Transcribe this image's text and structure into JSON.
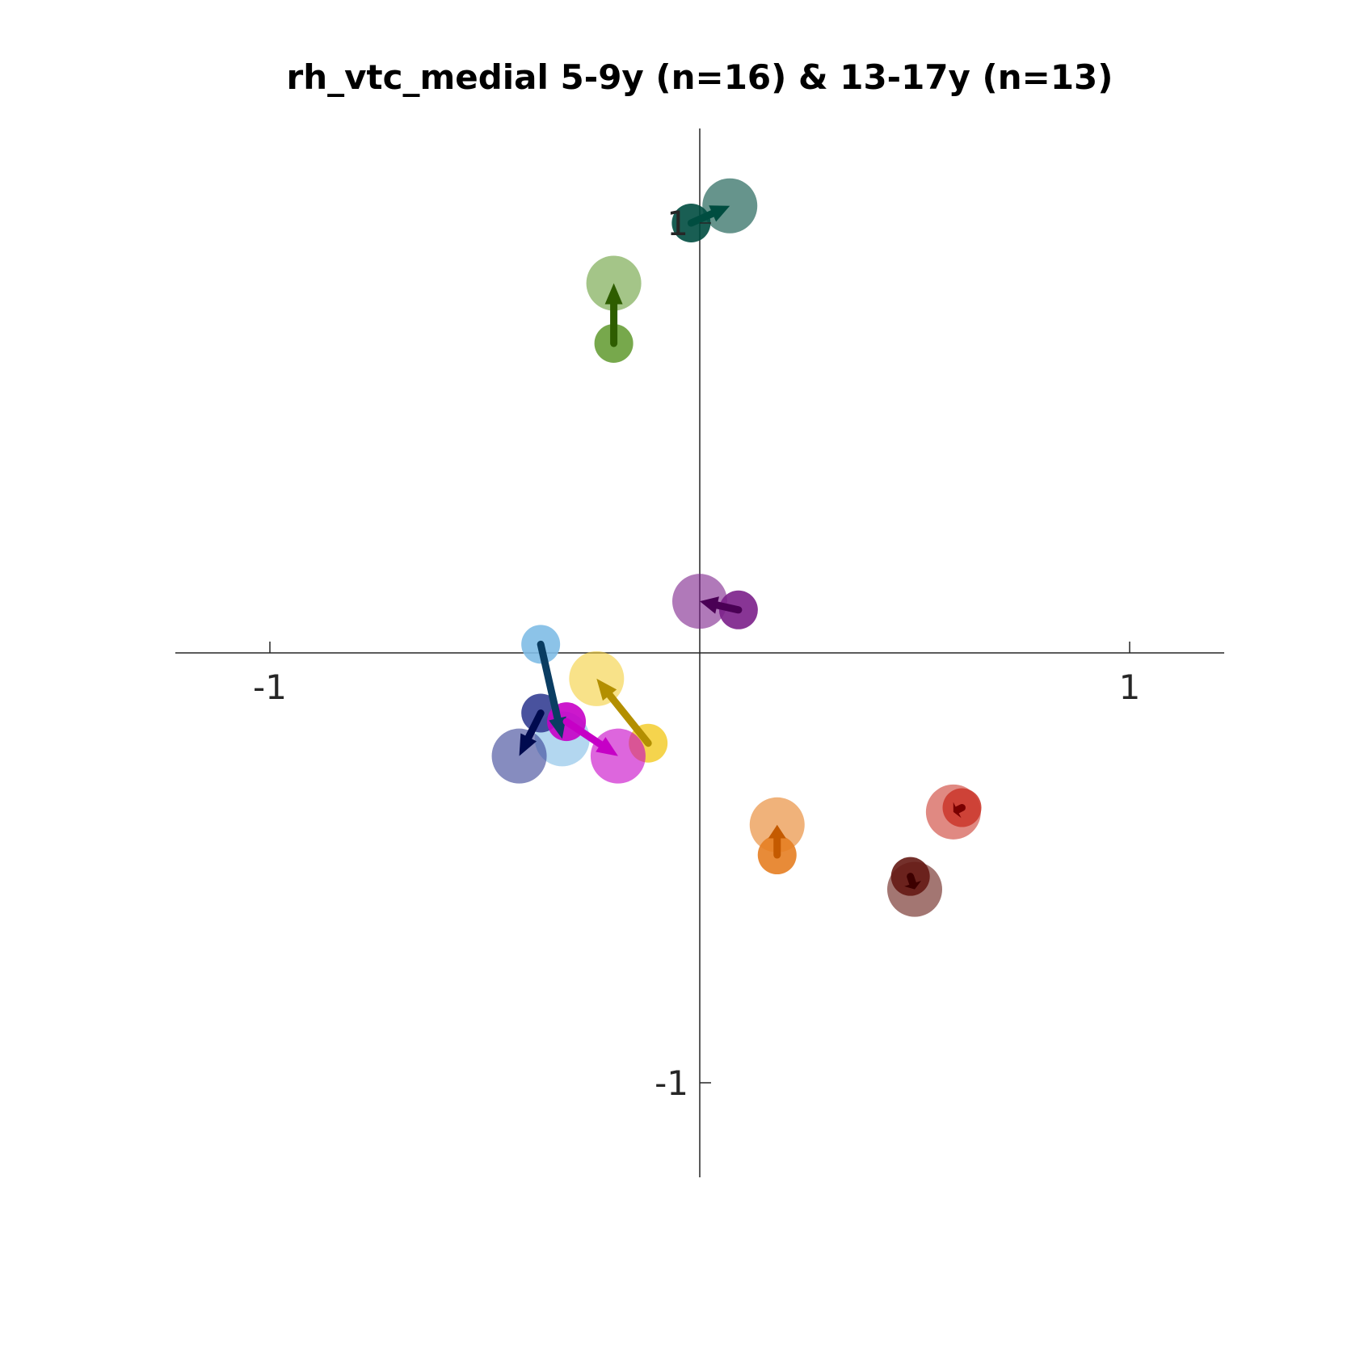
{
  "chart_data": {
    "type": "scatter",
    "title": "rh_vtc_medial 5-9y (n=16) & 13-17y (n=13)",
    "xlabel": "",
    "ylabel": "",
    "xlim": [
      -1.22,
      1.22
    ],
    "ylim": [
      -1.22,
      1.22
    ],
    "grid": false,
    "x_ticks": [
      {
        "value": -1,
        "label": "-1"
      },
      {
        "value": 1,
        "label": "1"
      }
    ],
    "y_ticks": [
      {
        "value": 1,
        "label": "1"
      },
      {
        "value": -1,
        "label": "-1"
      }
    ],
    "points": [
      {
        "young": [
          0.07,
          1.04
        ],
        "old": [
          -0.02,
          1.0
        ],
        "color_young": "#004d40",
        "color_old": "#004d40",
        "arrow_color": "#004d40"
      },
      {
        "young": [
          -0.2,
          0.86
        ],
        "old": [
          -0.2,
          0.72
        ],
        "color_young": "#689f38",
        "color_old": "#689f38",
        "arrow_color": "#2e5d00"
      },
      {
        "young": [
          0.0,
          0.12
        ],
        "old": [
          0.09,
          0.1
        ],
        "color_young": "#7b1f8a",
        "color_old": "#7b1f8a",
        "arrow_color": "#4a0055"
      },
      {
        "young": [
          -0.32,
          -0.2
        ],
        "old": [
          -0.37,
          0.02
        ],
        "color_young": "#80bde6",
        "color_old": "#80bde6",
        "arrow_color": "#0a3d62"
      },
      {
        "young": [
          -0.24,
          -0.06
        ],
        "old": [
          -0.12,
          -0.21
        ],
        "color_young": "#f4cf3a",
        "color_old": "#f4cf3a",
        "arrow_color": "#b38f00"
      },
      {
        "young": [
          -0.42,
          -0.24
        ],
        "old": [
          -0.37,
          -0.14
        ],
        "color_young": "#353f94",
        "color_old": "#353f94",
        "arrow_color": "#000a4f"
      },
      {
        "young": [
          -0.19,
          -0.24
        ],
        "old": [
          -0.31,
          -0.16
        ],
        "color_young": "#c600c6",
        "color_old": "#c600c6",
        "arrow_color": "#c600c6"
      },
      {
        "young": [
          0.18,
          -0.4
        ],
        "old": [
          0.18,
          -0.47
        ],
        "color_young": "#e67e22",
        "color_old": "#e67e22",
        "arrow_color": "#c45a00"
      },
      {
        "young": [
          0.59,
          -0.37
        ],
        "old": [
          0.61,
          -0.36
        ],
        "color_young": "#cc3b2f",
        "color_old": "#cc3b2f",
        "arrow_color": "#7a0000"
      },
      {
        "young": [
          0.5,
          -0.55
        ],
        "old": [
          0.49,
          -0.52
        ],
        "color_young": "#651a14",
        "color_old": "#651a14",
        "arrow_color": "#3d0000"
      }
    ]
  }
}
